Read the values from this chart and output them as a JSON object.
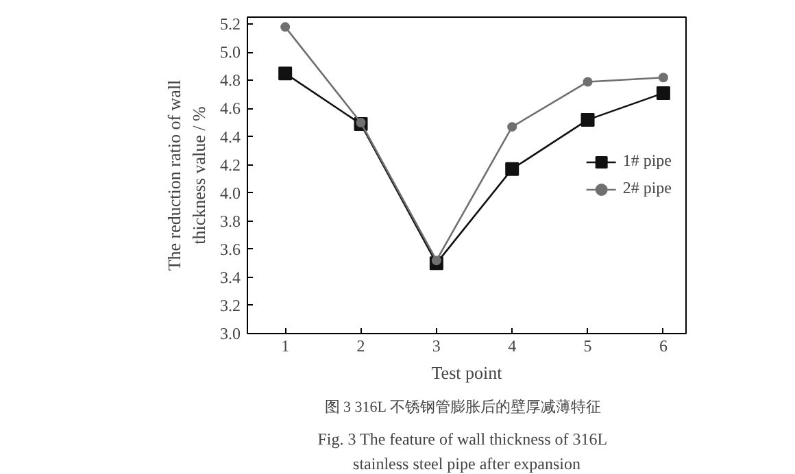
{
  "chart_data": {
    "type": "line",
    "xlabel": "Test point",
    "ylabel": "The reduction ratio of wall thickness value / %",
    "x": [
      1,
      2,
      3,
      4,
      5,
      6
    ],
    "xlim": [
      0.5,
      6.3
    ],
    "xticks": [
      1,
      2,
      3,
      4,
      5,
      6
    ],
    "ylim": [
      3.0,
      5.25
    ],
    "yticks": [
      {
        "value": 3,
        "label": "3.0"
      },
      3.2,
      3.4,
      3.6,
      3.8,
      {
        "value": 4,
        "label": "4.0"
      },
      4.2,
      4.4,
      4.6,
      4.8,
      {
        "value": 5,
        "label": "5.0"
      },
      5.2
    ],
    "grid": false,
    "legend": "right",
    "line_style": "solid",
    "series": [
      {
        "name": "1# pipe",
        "color": "#111111",
        "marker": "square",
        "values": [
          4.85,
          4.49,
          3.5,
          4.17,
          4.52,
          4.71
        ]
      },
      {
        "name": "2# pipe",
        "color": "#707070",
        "marker": "circle",
        "values": [
          5.18,
          4.5,
          3.52,
          4.47,
          4.79,
          4.82
        ]
      }
    ],
    "annotations": [
      "图 3   316L 不锈钢管膨胀后的壁厚减薄特征",
      "Fig. 3   The feature of wall thickness of 316L",
      "stainless steel pipe after expansion"
    ]
  }
}
